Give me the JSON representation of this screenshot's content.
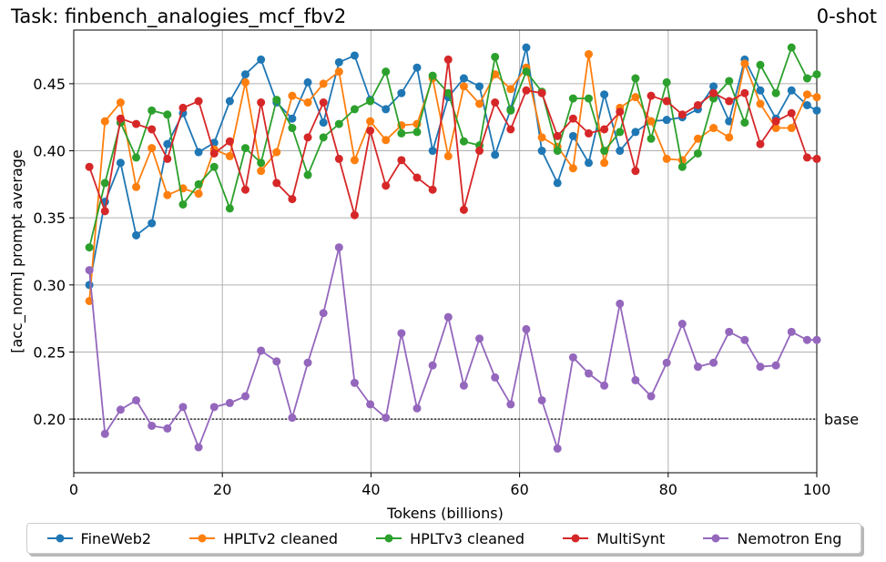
{
  "title_left": "Task: finbench_analogies_mcf_fbv2",
  "title_right": "0-shot",
  "chart_data": {
    "type": "line",
    "xlabel": "Tokens (billions)",
    "ylabel": "[acc_norm] prompt average",
    "xlim": [
      0,
      100
    ],
    "ylim": [
      0.16,
      0.49
    ],
    "xticks": [
      0,
      20,
      40,
      60,
      80,
      100
    ],
    "yticks": [
      0.2,
      0.25,
      0.3,
      0.35,
      0.4,
      0.45
    ],
    "grid": true,
    "legend_position": "bottom",
    "baseline": {
      "value": 0.2,
      "label": "base"
    },
    "x": [
      2.1,
      4.2,
      6.3,
      8.4,
      10.5,
      12.6,
      14.7,
      16.8,
      18.9,
      21.0,
      23.1,
      25.2,
      27.3,
      29.4,
      31.5,
      33.6,
      35.7,
      37.8,
      39.9,
      42.0,
      44.1,
      46.2,
      48.3,
      50.4,
      52.5,
      54.6,
      56.7,
      58.8,
      60.9,
      63.0,
      65.1,
      67.2,
      69.3,
      71.4,
      73.5,
      75.6,
      77.7,
      79.8,
      81.9,
      84.0,
      86.1,
      88.2,
      90.3,
      92.4,
      94.5,
      96.6,
      98.7,
      100.0
    ],
    "series": [
      {
        "name": "FineWeb2",
        "color": "#1f77b4",
        "values": [
          0.3,
          0.362,
          0.391,
          0.337,
          0.346,
          0.405,
          0.428,
          0.399,
          0.406,
          0.437,
          0.457,
          0.468,
          0.436,
          0.424,
          0.451,
          0.421,
          0.466,
          0.471,
          0.438,
          0.431,
          0.443,
          0.462,
          0.4,
          0.44,
          0.454,
          0.448,
          0.397,
          0.431,
          0.477,
          0.4,
          0.376,
          0.411,
          0.391,
          0.442,
          0.4,
          0.414,
          0.422,
          0.423,
          0.425,
          0.431,
          0.448,
          0.422,
          0.468,
          0.445,
          0.424,
          0.445,
          0.434,
          0.43
        ]
      },
      {
        "name": "HPLTv2 cleaned",
        "color": "#ff7f0e",
        "values": [
          0.288,
          0.422,
          0.436,
          0.373,
          0.402,
          0.367,
          0.372,
          0.368,
          0.401,
          0.396,
          0.451,
          0.385,
          0.399,
          0.441,
          0.436,
          0.45,
          0.459,
          0.393,
          0.422,
          0.408,
          0.419,
          0.42,
          0.454,
          0.396,
          0.448,
          0.435,
          0.457,
          0.446,
          0.462,
          0.41,
          0.403,
          0.387,
          0.472,
          0.391,
          0.432,
          0.44,
          0.422,
          0.394,
          0.393,
          0.409,
          0.417,
          0.41,
          0.465,
          0.435,
          0.417,
          0.417,
          0.442,
          0.44
        ]
      },
      {
        "name": "HPLTv3 cleaned",
        "color": "#2ca02c",
        "values": [
          0.328,
          0.376,
          0.421,
          0.395,
          0.43,
          0.427,
          0.36,
          0.375,
          0.388,
          0.357,
          0.402,
          0.391,
          0.438,
          0.417,
          0.382,
          0.41,
          0.42,
          0.431,
          0.437,
          0.459,
          0.413,
          0.414,
          0.456,
          0.443,
          0.407,
          0.404,
          0.47,
          0.43,
          0.459,
          0.444,
          0.4,
          0.439,
          0.439,
          0.4,
          0.414,
          0.454,
          0.409,
          0.451,
          0.388,
          0.398,
          0.439,
          0.452,
          0.421,
          0.464,
          0.443,
          0.477,
          0.454,
          0.457
        ]
      },
      {
        "name": "MultiSynt",
        "color": "#d62728",
        "values": [
          0.388,
          0.355,
          0.424,
          0.42,
          0.416,
          0.394,
          0.432,
          0.437,
          0.398,
          0.407,
          0.371,
          0.436,
          0.376,
          0.364,
          0.41,
          0.436,
          0.394,
          0.352,
          0.415,
          0.374,
          0.393,
          0.38,
          0.371,
          0.468,
          0.356,
          0.4,
          0.436,
          0.416,
          0.445,
          0.443,
          0.411,
          0.424,
          0.413,
          0.416,
          0.429,
          0.385,
          0.441,
          0.437,
          0.427,
          0.434,
          0.443,
          0.437,
          0.443,
          0.405,
          0.422,
          0.428,
          0.395,
          0.394
        ]
      },
      {
        "name": "Nemotron Eng",
        "color": "#9467bd",
        "values": [
          0.311,
          0.189,
          0.207,
          0.214,
          0.195,
          0.193,
          0.209,
          0.179,
          0.209,
          0.212,
          0.217,
          0.251,
          0.243,
          0.201,
          0.242,
          0.279,
          0.328,
          0.227,
          0.211,
          0.201,
          0.264,
          0.208,
          0.24,
          0.276,
          0.225,
          0.26,
          0.231,
          0.211,
          0.267,
          0.214,
          0.178,
          0.246,
          0.234,
          0.225,
          0.286,
          0.229,
          0.217,
          0.242,
          0.271,
          0.239,
          0.242,
          0.265,
          0.259,
          0.239,
          0.24,
          0.265,
          0.259,
          0.259
        ]
      }
    ]
  }
}
